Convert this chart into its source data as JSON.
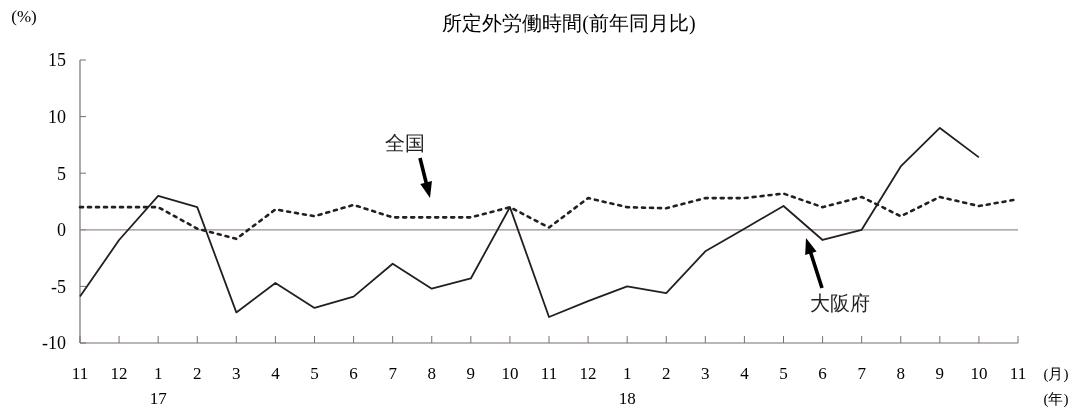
{
  "chart_data": {
    "type": "line",
    "title": "所定外労働時間(前年同月比)",
    "ylabel": "(%)",
    "xlabel": "(月)\n(年)",
    "categories": [
      "11",
      "12",
      "1\n17",
      "2",
      "3",
      "4",
      "5",
      "6",
      "7",
      "8",
      "9",
      "10",
      "11",
      "12",
      "1\n18",
      "2",
      "3",
      "4",
      "5",
      "6",
      "7",
      "8",
      "9",
      "10",
      "11"
    ],
    "series": [
      {
        "name": "大阪府",
        "color": "#231f20",
        "line_style": "solid",
        "values": [
          -5.9,
          -0.9,
          3.0,
          2.0,
          -7.3,
          -4.7,
          -6.9,
          -5.9,
          -3.0,
          -5.2,
          -4.3,
          2.0,
          -7.7,
          -6.3,
          -5.0,
          -5.6,
          -1.9,
          0.1,
          2.1,
          -0.9,
          0.0,
          5.6,
          9.0,
          6.4,
          null
        ]
      },
      {
        "name": "全国",
        "color": "#231f20",
        "line_style": "dotted",
        "values": [
          2.0,
          2.0,
          2.0,
          0.1,
          -0.8,
          1.8,
          1.2,
          2.2,
          1.1,
          1.1,
          1.1,
          2.0,
          0.2,
          2.8,
          2.0,
          1.9,
          2.8,
          2.8,
          3.2,
          2.0,
          2.9,
          1.2,
          2.9,
          2.1,
          2.7
        ]
      }
    ],
    "ylim": [
      -10,
      15
    ],
    "yticks": [
      -10,
      -5,
      0,
      5,
      10,
      15
    ],
    "ref_lines": [
      {
        "axis": "y",
        "value": 0,
        "color": "#9a8f8c"
      }
    ],
    "grid": false,
    "legend": false
  }
}
